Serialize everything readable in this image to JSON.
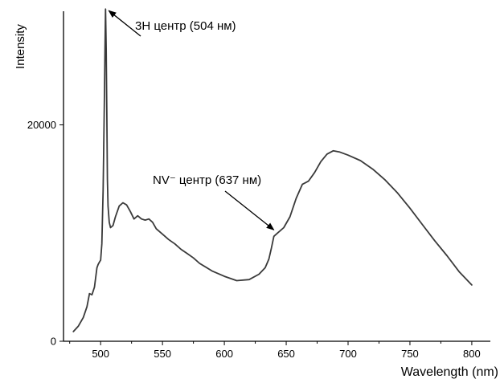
{
  "chart_data": {
    "type": "line",
    "title": "",
    "xlabel": "Wavelength (nm)",
    "ylabel": "Intensity",
    "xlim": [
      470,
      815
    ],
    "ylim": [
      0,
      30500
    ],
    "x_ticks": [
      500,
      550,
      600,
      650,
      700,
      750,
      800
    ],
    "y_ticks": [
      0,
      20000
    ],
    "grid": false,
    "line_color": "#3a3a3a",
    "series": [
      {
        "x": [
          478,
          482,
          486,
          489,
          491,
          493,
          495,
          497,
          498,
          499,
          500,
          501,
          502,
          503,
          503.5,
          504,
          504.5,
          505,
          505.5,
          506,
          507,
          508,
          510,
          512,
          515,
          518,
          521,
          524,
          527,
          530,
          533,
          536,
          539,
          542,
          545,
          550,
          555,
          560,
          565,
          570,
          575,
          580,
          590,
          600,
          610,
          620,
          628,
          633,
          636,
          638,
          640,
          643,
          648,
          653,
          658,
          663,
          668,
          673,
          678,
          683,
          688,
          693,
          700,
          710,
          720,
          730,
          740,
          750,
          760,
          770,
          780,
          790,
          800
        ],
        "y": [
          900,
          1400,
          2200,
          3200,
          4400,
          4300,
          5000,
          6800,
          7100,
          7300,
          7500,
          9000,
          14000,
          22000,
          27000,
          30700,
          27000,
          21000,
          15000,
          12500,
          11000,
          10500,
          10700,
          11500,
          12500,
          12800,
          12600,
          12000,
          11300,
          11600,
          11300,
          11200,
          11300,
          11000,
          10400,
          9900,
          9400,
          9000,
          8500,
          8100,
          7700,
          7200,
          6500,
          6000,
          5600,
          5700,
          6200,
          6800,
          7600,
          8600,
          9700,
          10000,
          10500,
          11500,
          13200,
          14500,
          14800,
          15600,
          16600,
          17300,
          17600,
          17500,
          17200,
          16700,
          15900,
          14900,
          13700,
          12300,
          10800,
          9300,
          7900,
          6400,
          5200
        ]
      }
    ],
    "annotations": [
      {
        "text": "3H центр (504 нм)",
        "point_x": 504,
        "point_y": 30700
      },
      {
        "text": "NV⁻ центр (637 нм)",
        "point_x": 640,
        "point_y": 10000
      }
    ]
  }
}
